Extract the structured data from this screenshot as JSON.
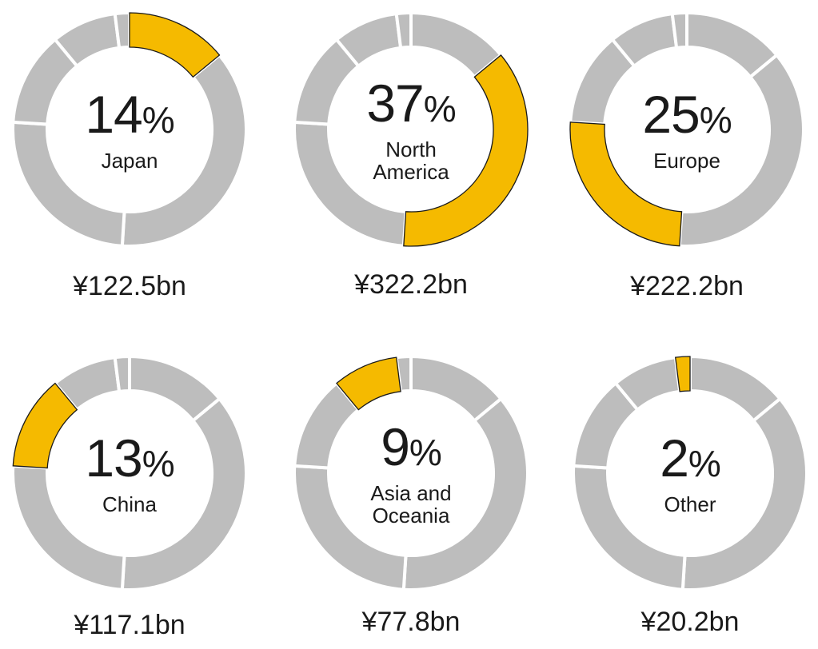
{
  "colors": {
    "highlight": "#F5BA00",
    "segment": "#BDBDBD",
    "gap": "#FFFFFF",
    "text": "#1A1A1A"
  },
  "chart_data": {
    "type": "pie",
    "title": "",
    "ring_segments": [
      14,
      37,
      25,
      13,
      9,
      2
    ],
    "charts": [
      {
        "region": "Japan",
        "percent": 14,
        "value": "¥122.5bn"
      },
      {
        "region": "North\nAmerica",
        "percent": 37,
        "value": "¥322.2bn"
      },
      {
        "region": "Europe",
        "percent": 25,
        "value": "¥222.2bn"
      },
      {
        "region": "China",
        "percent": 13,
        "value": "¥117.1bn"
      },
      {
        "region": "Asia and\nOceania",
        "percent": 9,
        "value": "¥77.8bn"
      },
      {
        "region": "Other",
        "percent": 2,
        "value": "¥20.2bn"
      }
    ]
  }
}
